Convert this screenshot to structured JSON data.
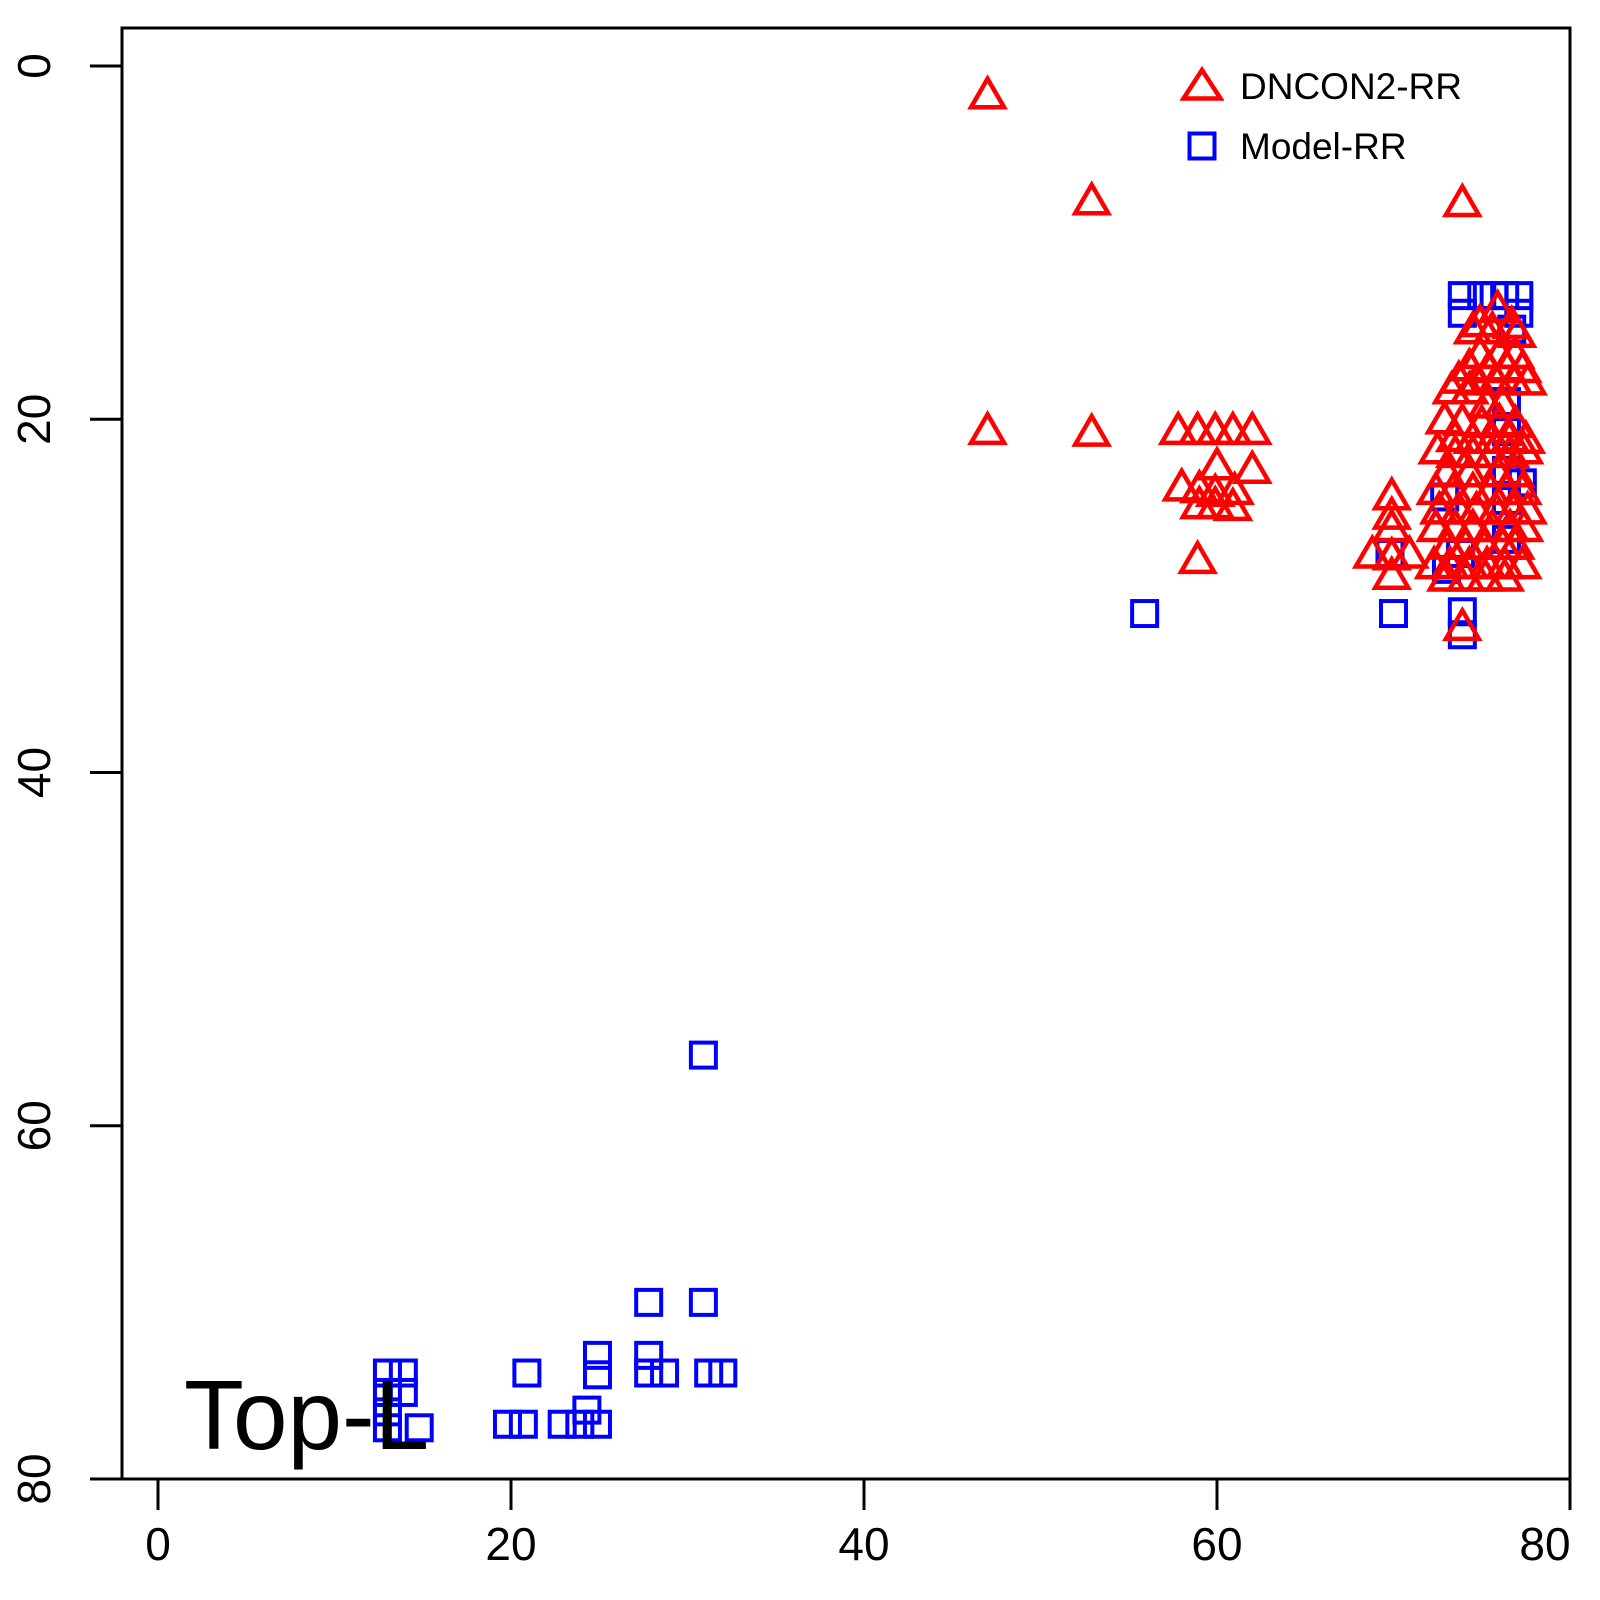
{
  "figure": {
    "background": "#FFFFFF",
    "frame_color": "#000000"
  },
  "chart_data": {
    "type": "scatter",
    "title": "",
    "xlabel": "",
    "ylabel": "",
    "annotation": "Top-L",
    "x_ticks": [
      0,
      20,
      40,
      60,
      80
    ],
    "y_ticks": [
      0,
      20,
      40,
      60,
      80
    ],
    "xlim": [
      0,
      80
    ],
    "ylim": [
      0,
      80
    ],
    "y_axis_inverted": true,
    "grid": false,
    "legend": {
      "position": "top-right",
      "entries": [
        {
          "label": "DNCON2-RR",
          "marker": "triangle",
          "color": "#FF0000"
        },
        {
          "label": "Model-RR",
          "marker": "square",
          "color": "#0000FF"
        }
      ]
    },
    "series": [
      {
        "name": "Model-RR",
        "marker": "square",
        "color": "#0000FF",
        "points": [
          [
            73.9,
            13.0
          ],
          [
            75.0,
            13.0
          ],
          [
            75.7,
            13.0
          ],
          [
            76.3,
            13.0
          ],
          [
            77.1,
            13.0
          ],
          [
            73.9,
            14.0
          ],
          [
            77.1,
            14.0
          ],
          [
            76.7,
            14.9
          ],
          [
            76.4,
            19.0
          ],
          [
            76.4,
            20.7
          ],
          [
            76.4,
            22.9
          ],
          [
            77.3,
            23.6
          ],
          [
            72.9,
            24.4
          ],
          [
            76.4,
            24.6
          ],
          [
            76.4,
            26.8
          ],
          [
            69.8,
            27.6
          ],
          [
            73.8,
            27.6
          ],
          [
            73.0,
            28.5
          ],
          [
            55.9,
            31.0
          ],
          [
            70.0,
            31.0
          ],
          [
            73.9,
            30.9
          ],
          [
            73.9,
            32.2
          ],
          [
            30.9,
            56.0
          ],
          [
            27.8,
            70.0
          ],
          [
            30.9,
            70.0
          ],
          [
            24.9,
            73.0
          ],
          [
            27.8,
            73.0
          ],
          [
            13.0,
            74.0
          ],
          [
            13.9,
            74.0
          ],
          [
            20.9,
            74.0
          ],
          [
            24.9,
            74.1
          ],
          [
            27.8,
            74.0
          ],
          [
            28.7,
            74.0
          ],
          [
            31.2,
            74.0
          ],
          [
            32.0,
            74.0
          ],
          [
            13.0,
            75.1
          ],
          [
            13.9,
            75.1
          ],
          [
            24.3,
            76.1
          ],
          [
            13.0,
            76.2
          ],
          [
            13.0,
            77.1
          ],
          [
            14.8,
            77.1
          ],
          [
            19.8,
            76.9
          ],
          [
            20.7,
            76.9
          ],
          [
            22.9,
            76.9
          ],
          [
            23.9,
            76.9
          ],
          [
            24.9,
            76.9
          ]
        ]
      },
      {
        "name": "DNCON2-RR",
        "marker": "triangle",
        "color": "#FF0000",
        "points": [
          [
            47.0,
            1.8
          ],
          [
            52.9,
            7.8
          ],
          [
            73.9,
            7.9
          ],
          [
            47.0,
            20.8
          ],
          [
            52.9,
            20.9
          ],
          [
            57.8,
            20.8
          ],
          [
            58.9,
            20.8
          ],
          [
            59.9,
            20.8
          ],
          [
            60.9,
            20.8
          ],
          [
            62.0,
            20.8
          ],
          [
            60.0,
            22.8
          ],
          [
            62.0,
            23.0
          ],
          [
            58.0,
            24.0
          ],
          [
            59.0,
            24.1
          ],
          [
            59.9,
            24.3
          ],
          [
            61.0,
            24.2
          ],
          [
            59.0,
            25.0
          ],
          [
            59.9,
            25.0
          ],
          [
            60.9,
            25.1
          ],
          [
            58.9,
            28.1
          ],
          [
            69.9,
            24.5
          ],
          [
            69.9,
            25.6
          ],
          [
            69.9,
            26.3
          ],
          [
            68.8,
            27.8
          ],
          [
            69.9,
            27.9
          ],
          [
            70.9,
            27.8
          ],
          [
            69.9,
            29.0
          ],
          [
            75.9,
            13.9
          ],
          [
            74.9,
            14.7
          ],
          [
            76.7,
            14.8
          ],
          [
            74.5,
            15.1
          ],
          [
            75.6,
            15.1
          ],
          [
            77.0,
            15.3
          ],
          [
            74.9,
            16.5
          ],
          [
            76.0,
            16.5
          ],
          [
            76.9,
            16.5
          ],
          [
            74.3,
            17.2
          ],
          [
            75.4,
            17.3
          ],
          [
            76.4,
            17.2
          ],
          [
            77.3,
            17.3
          ],
          [
            73.7,
            17.9
          ],
          [
            74.7,
            18.0
          ],
          [
            75.8,
            18.0
          ],
          [
            76.8,
            18.0
          ],
          [
            77.6,
            18.0
          ],
          [
            73.3,
            18.5
          ],
          [
            74.3,
            18.5
          ],
          [
            75.3,
            19.3
          ],
          [
            76.2,
            19.3
          ],
          [
            72.9,
            20.2
          ],
          [
            73.9,
            20.3
          ],
          [
            75.0,
            20.4
          ],
          [
            76.0,
            20.3
          ],
          [
            76.9,
            20.4
          ],
          [
            73.5,
            21.2
          ],
          [
            74.5,
            21.3
          ],
          [
            75.6,
            21.3
          ],
          [
            76.6,
            21.2
          ],
          [
            77.5,
            21.3
          ],
          [
            72.5,
            21.9
          ],
          [
            73.5,
            22.1
          ],
          [
            74.5,
            22.1
          ],
          [
            75.6,
            22.1
          ],
          [
            76.6,
            22.1
          ],
          [
            77.4,
            21.9
          ],
          [
            73.0,
            23.2
          ],
          [
            74.3,
            23.2
          ],
          [
            75.9,
            23.2
          ],
          [
            76.9,
            23.2
          ],
          [
            72.4,
            24.2
          ],
          [
            73.4,
            24.2
          ],
          [
            74.5,
            24.2
          ],
          [
            75.5,
            24.2
          ],
          [
            76.4,
            24.2
          ],
          [
            77.3,
            24.2
          ],
          [
            72.6,
            25.3
          ],
          [
            73.7,
            25.3
          ],
          [
            74.7,
            25.3
          ],
          [
            75.8,
            25.3
          ],
          [
            76.8,
            25.3
          ],
          [
            77.6,
            25.3
          ],
          [
            72.4,
            26.3
          ],
          [
            73.5,
            26.3
          ],
          [
            74.5,
            26.3
          ],
          [
            75.6,
            26.3
          ],
          [
            76.6,
            26.3
          ],
          [
            77.4,
            26.3
          ],
          [
            73.1,
            27.3
          ],
          [
            74.1,
            27.3
          ],
          [
            75.2,
            27.3
          ],
          [
            76.2,
            27.3
          ],
          [
            76.9,
            27.3
          ],
          [
            72.3,
            28.4
          ],
          [
            73.2,
            28.4
          ],
          [
            74.3,
            28.4
          ],
          [
            75.3,
            28.4
          ],
          [
            76.3,
            28.4
          ],
          [
            77.3,
            28.4
          ],
          [
            73.0,
            29.1
          ],
          [
            74.1,
            29.1
          ],
          [
            75.2,
            29.1
          ],
          [
            76.3,
            29.1
          ],
          [
            73.9,
            31.9
          ]
        ]
      }
    ]
  }
}
